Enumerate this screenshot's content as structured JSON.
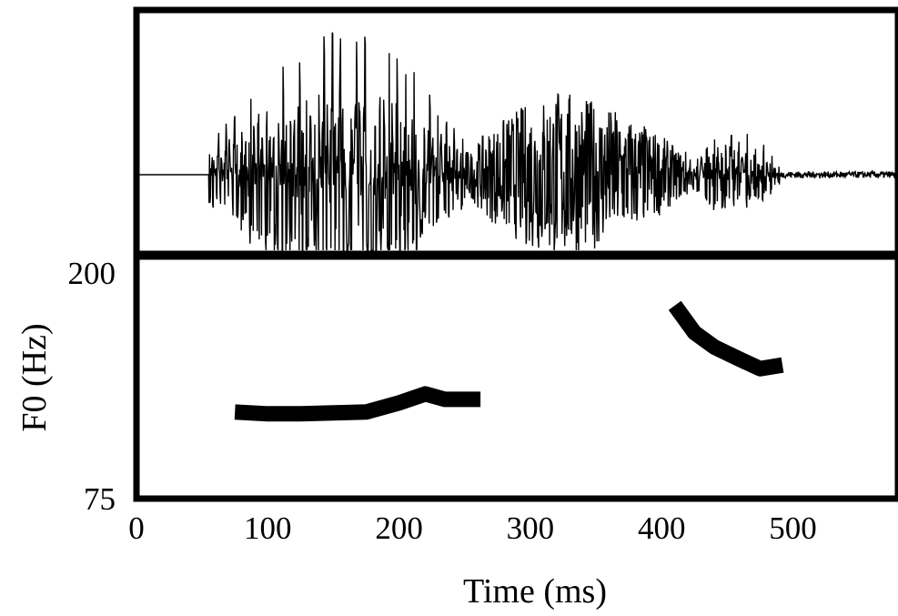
{
  "chart_data": {
    "type": "line",
    "panels": [
      "waveform",
      "f0-contour"
    ],
    "xlabel": "Time (ms)",
    "ylabel": "F0 (Hz)",
    "xlim": [
      0,
      580
    ],
    "ylim": [
      75,
      200
    ],
    "x_ticks": [
      0,
      100,
      200,
      300,
      400,
      500
    ],
    "y_ticks": [
      75,
      200
    ],
    "grid": false,
    "waveform_segments": [
      {
        "t_start": 0,
        "t_end": 55,
        "amplitude": 0.0
      },
      {
        "t_start": 55,
        "t_end": 250,
        "amplitude_peak": 1.0,
        "peak_t": 165,
        "type": "periodic"
      },
      {
        "t_start": 250,
        "t_end": 420,
        "amplitude_peak": 0.55,
        "peak_t": 320,
        "type": "noisy"
      },
      {
        "t_start": 420,
        "t_end": 490,
        "amplitude_peak": 0.35,
        "peak_t": 450,
        "type": "periodic"
      },
      {
        "t_start": 490,
        "t_end": 580,
        "amplitude": 0.02
      }
    ],
    "series": [
      {
        "x": [
          75,
          100,
          125,
          150,
          175,
          200,
          220,
          235,
          250,
          262
        ],
        "y": [
          123,
          122,
          122,
          122.5,
          123,
          128,
          133,
          130,
          130,
          130
        ]
      },
      {
        "x": [
          410,
          425,
          440,
          460,
          475,
          492
        ],
        "y": [
          182,
          167,
          159,
          152,
          147,
          149
        ]
      }
    ]
  }
}
